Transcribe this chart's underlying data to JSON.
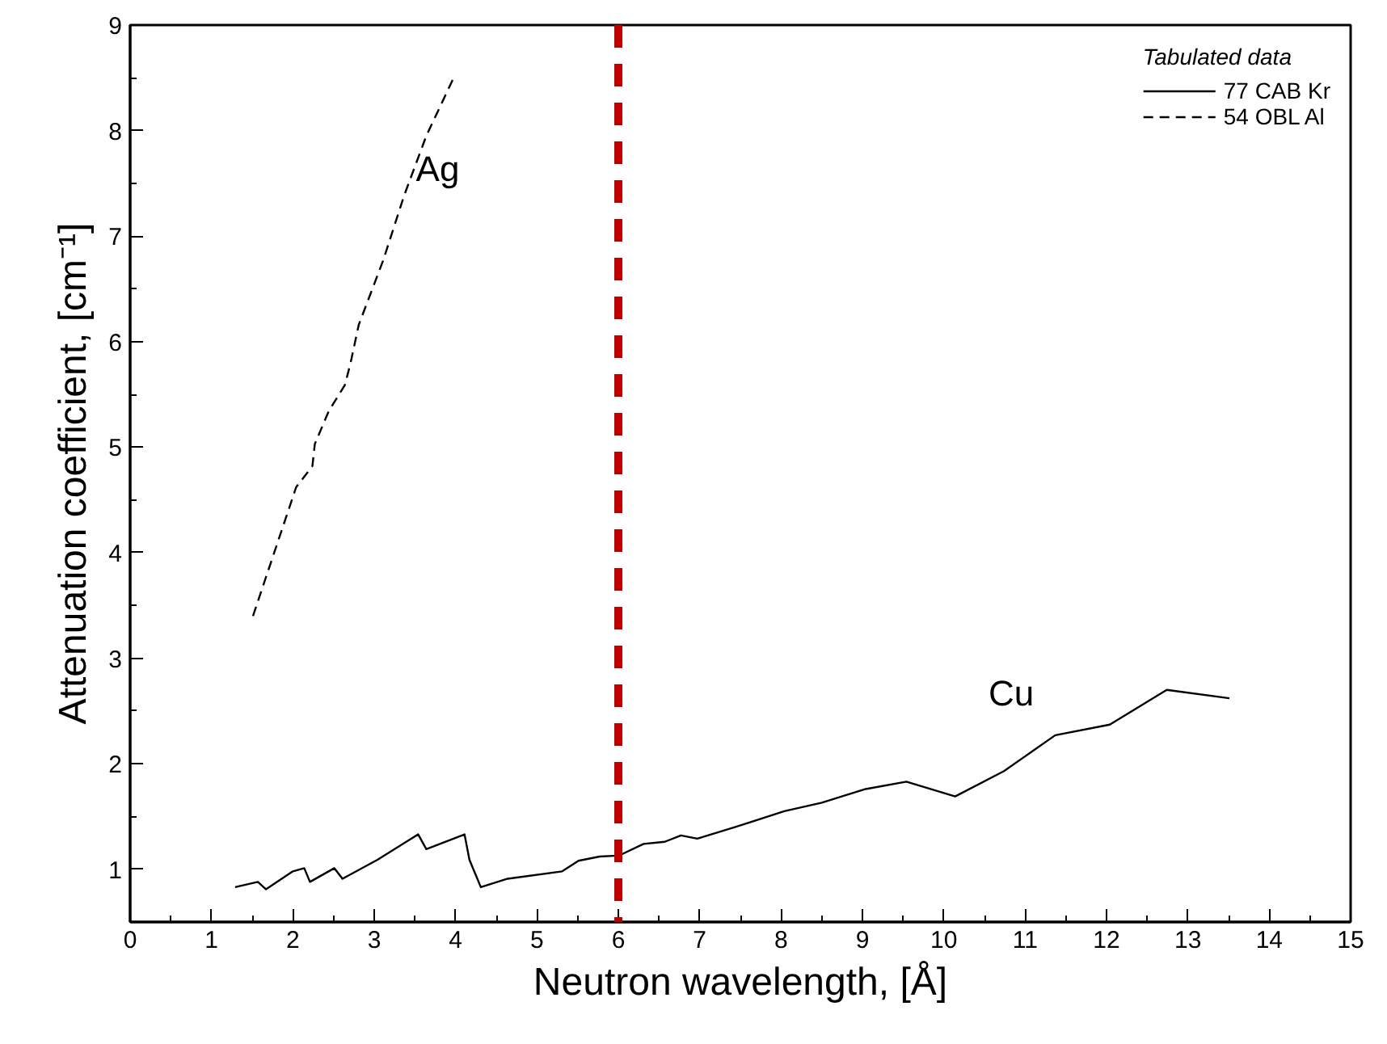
{
  "chart_data": {
    "type": "line",
    "xlabel": "Neutron wavelength, [Å]",
    "ylabel": "Attenuation coefficient, [cm⁻¹]",
    "legend_title": "Tabulated data",
    "legend": "top right",
    "grid": false,
    "xlim": [
      0,
      15
    ],
    "xticks": [
      0,
      1,
      2,
      3,
      4,
      5,
      6,
      7,
      8,
      9,
      10,
      11,
      12,
      13,
      14,
      15
    ],
    "ylim": [
      0.5,
      9
    ],
    "yticks": [
      1,
      2,
      3,
      4,
      5,
      6,
      7,
      8,
      9
    ],
    "series": [
      {
        "name": "77 CAB Kr",
        "color": "#000000",
        "line_style": "solid",
        "x": [
          1.29,
          1.57,
          1.67,
          2.0,
          2.14,
          2.21,
          2.51,
          2.61,
          3.04,
          3.54,
          3.64,
          4.11,
          4.17,
          4.31,
          4.64,
          5.31,
          5.51,
          5.77,
          6.01,
          6.31,
          6.57,
          6.77,
          6.97,
          7.44,
          8.04,
          8.5,
          9.04,
          9.54,
          10.14,
          10.74,
          11.37,
          12.04,
          12.74,
          13.51
        ],
        "values": [
          0.83,
          0.88,
          0.81,
          0.98,
          1.01,
          0.88,
          1.01,
          0.91,
          1.09,
          1.33,
          1.19,
          1.33,
          1.09,
          0.83,
          0.91,
          0.98,
          1.08,
          1.12,
          1.13,
          1.24,
          1.26,
          1.32,
          1.29,
          1.4,
          1.55,
          1.63,
          1.76,
          1.83,
          1.69,
          1.93,
          2.27,
          2.37,
          2.7,
          2.62
        ]
      },
      {
        "name": "54 OBL Al",
        "color": "#000000",
        "line_style": "dashed",
        "x": [
          1.51,
          2.04,
          2.24,
          2.27,
          2.44,
          2.64,
          2.71,
          2.81,
          3.11,
          3.37,
          3.64,
          3.97
        ],
        "values": [
          3.4,
          4.62,
          4.82,
          5.03,
          5.34,
          5.59,
          5.8,
          6.16,
          6.77,
          7.39,
          7.95,
          8.49
        ]
      }
    ],
    "ref_lines": [
      {
        "axis": "x",
        "value": 6,
        "color": "#c00000",
        "line_style": "dashed"
      }
    ],
    "annotations": [
      "Ag",
      "Cu"
    ]
  }
}
